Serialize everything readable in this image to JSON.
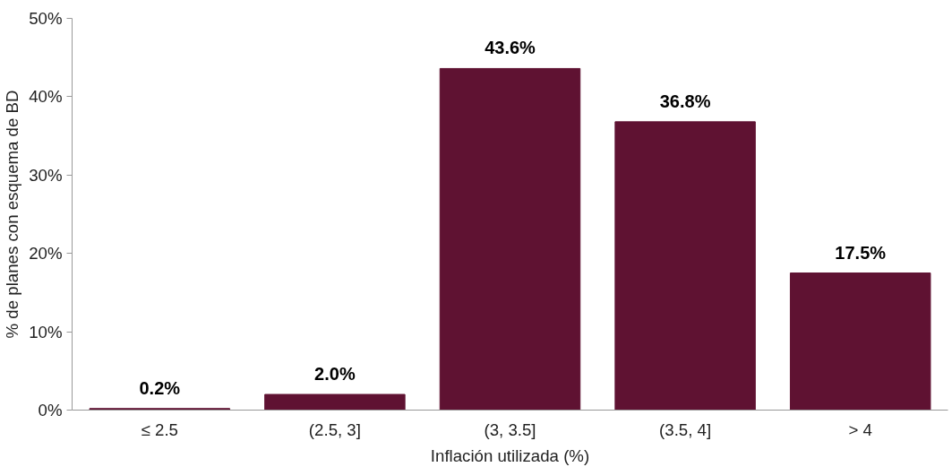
{
  "chart_data": {
    "type": "bar",
    "xlabel": "Inflación utilizada (%)",
    "ylabel": "% de planes con esquema de BD",
    "categories": [
      "≤ 2.5",
      "(2.5, 3]",
      "(3, 3.5]",
      "(3.5, 4]",
      "> 4"
    ],
    "values": [
      0.2,
      2.0,
      43.6,
      36.8,
      17.5
    ],
    "value_labels": [
      "0.2%",
      "2.0%",
      "43.6%",
      "36.8%",
      "17.5%"
    ],
    "color": "#5f1232",
    "ylim": [
      0,
      50
    ],
    "yticks": [
      {
        "value": 0,
        "label": "0%"
      },
      {
        "value": 10,
        "label": "10%"
      },
      {
        "value": 20,
        "label": "20%"
      },
      {
        "value": 30,
        "label": "30%"
      },
      {
        "value": 40,
        "label": "40%"
      },
      {
        "value": 50,
        "label": "50%"
      }
    ],
    "grid": false
  }
}
